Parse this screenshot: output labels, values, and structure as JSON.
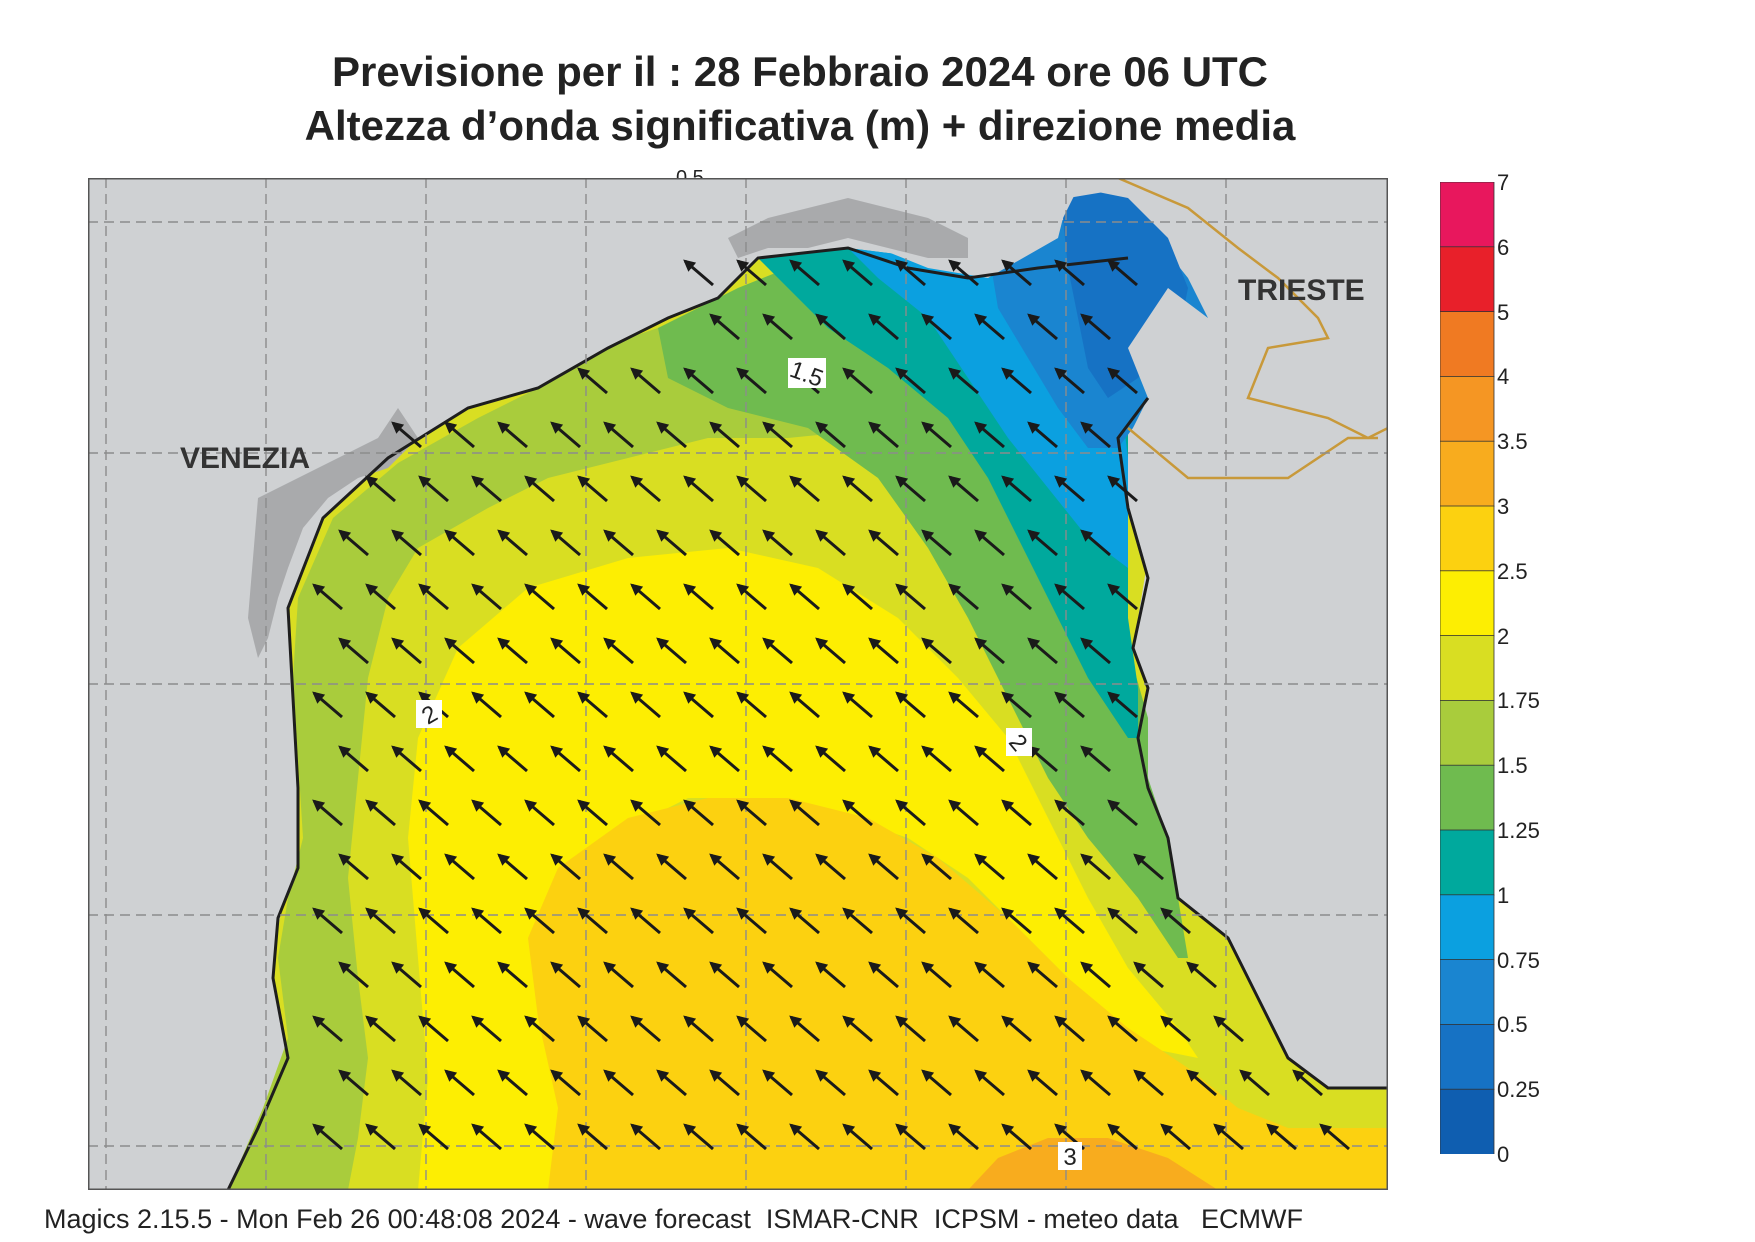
{
  "header": {
    "title_line1": "Previsione per il  :  28  Febbraio 2024   ore 06 UTC",
    "title_line2": "Altezza d’onda significativa (m) + direzione media"
  },
  "map": {
    "cities": [
      {
        "name": "VENEZIA"
      },
      {
        "name": "TRIESTE"
      }
    ],
    "contour_labels": [
      "1.5",
      "2",
      "2",
      "3",
      "0.5"
    ],
    "colors": {
      "land": "#cfd1d3",
      "coast": "#1e1e1e",
      "border": "#c8993a",
      "grid": "#8c8c8c",
      "arrow": "#1a1a1a"
    },
    "arrow_direction": "north-west"
  },
  "legend": {
    "labels": [
      "7",
      "6",
      "5",
      "4",
      "3.5",
      "3",
      "2.5",
      "2",
      "1.75",
      "1.5",
      "1.25",
      "1",
      "0.75",
      "0.5",
      "0.25",
      "0"
    ],
    "colors": [
      "#e8175d",
      "#e8202a",
      "#f07a22",
      "#f59623",
      "#f8ac1e",
      "#fcd110",
      "#fdee02",
      "#d9de22",
      "#a9cc3c",
      "#6fbb4f",
      "#00a99d",
      "#0ba0e0",
      "#1a85d0",
      "#1672c4",
      "#0f5eb0"
    ]
  },
  "footer": {
    "text": "Magics 2.15.5 - Mon Feb 26 00:48:08 2024 - wave forecast  ISMAR-CNR  ICPSM - meteo data   ECMWF"
  }
}
